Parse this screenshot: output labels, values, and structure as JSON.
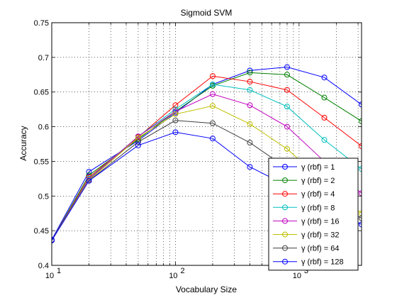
{
  "chart_data": {
    "type": "line",
    "title": "Sigmoid SVM",
    "xlabel": "Vocabulary Size",
    "ylabel": "Accuracy",
    "x_scale": "log",
    "xlim": [
      10,
      3200
    ],
    "ylim": [
      0.4,
      0.75
    ],
    "x": [
      10,
      20,
      50,
      100,
      200,
      400,
      800,
      1600,
      3200
    ],
    "y_ticks": [
      "0.4",
      "0.45",
      "0.5",
      "0.55",
      "0.6",
      "0.65",
      "0.7",
      "0.75"
    ],
    "y_tick_values": [
      0.4,
      0.45,
      0.5,
      0.55,
      0.6,
      0.65,
      0.7,
      0.75
    ],
    "x_ticks": [
      {
        "value": 10,
        "base": "10",
        "exp": "1"
      },
      {
        "value": 100,
        "base": "10",
        "exp": "2"
      },
      {
        "value": 1000,
        "base": "10",
        "exp": "3"
      }
    ],
    "grid": true,
    "legend_position": "bottom-right",
    "marker": "open-circle",
    "series": [
      {
        "name": "γ (rbf) = 1",
        "color": "#0000ff",
        "values": [
          0.437,
          0.535,
          0.58,
          0.62,
          0.661,
          0.681,
          0.686,
          0.671,
          0.632
        ]
      },
      {
        "name": "γ (rbf) = 2",
        "color": "#008000",
        "values": [
          0.436,
          0.53,
          0.582,
          0.622,
          0.659,
          0.678,
          0.675,
          0.642,
          0.608
        ]
      },
      {
        "name": "γ (rbf) = 4",
        "color": "#ff0000",
        "values": [
          0.436,
          0.527,
          0.585,
          0.631,
          0.673,
          0.665,
          0.653,
          0.613,
          0.572
        ]
      },
      {
        "name": "γ (rbf) = 8",
        "color": "#00bfbf",
        "values": [
          0.436,
          0.525,
          0.586,
          0.625,
          0.661,
          0.653,
          0.629,
          0.581,
          0.539
        ]
      },
      {
        "name": "γ (rbf) = 16",
        "color": "#bf00bf",
        "values": [
          0.436,
          0.524,
          0.586,
          0.622,
          0.647,
          0.631,
          0.6,
          0.55,
          0.504
        ]
      },
      {
        "name": "γ (rbf) = 32",
        "color": "#bfbf00",
        "values": [
          0.436,
          0.523,
          0.584,
          0.618,
          0.63,
          0.604,
          0.568,
          0.52,
          0.475
        ]
      },
      {
        "name": "γ (rbf) = 64",
        "color": "#404040",
        "values": [
          0.436,
          0.522,
          0.578,
          0.609,
          0.605,
          0.577,
          0.54,
          0.502,
          0.468
        ]
      },
      {
        "name": "γ (rbf) = 128",
        "color": "#0000ff",
        "values": [
          0.436,
          0.522,
          0.573,
          0.592,
          0.583,
          0.542,
          0.515,
          0.488,
          0.459
        ]
      }
    ]
  }
}
